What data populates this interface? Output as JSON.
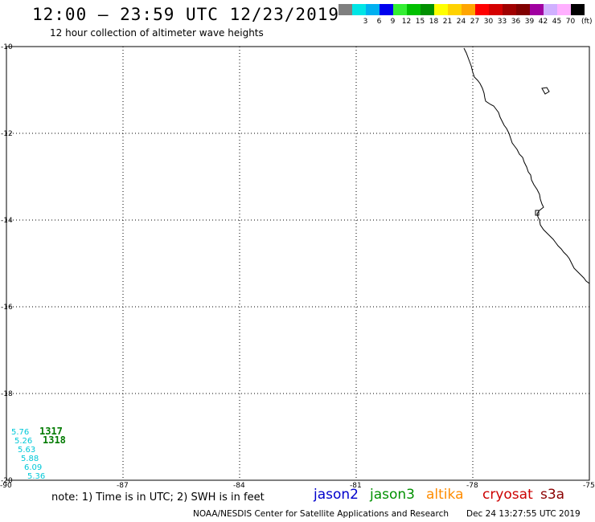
{
  "header": {
    "title": "12:00 – 23:59 UTC 12/23/2019",
    "subtitle": "12 hour collection of altimeter wave heights"
  },
  "color_scale": {
    "unit": "(ft)",
    "bins": [
      {
        "label": "",
        "color": "#7f7f7f"
      },
      {
        "label": "3",
        "color": "#00e5e5"
      },
      {
        "label": "6",
        "color": "#00b0f0"
      },
      {
        "label": "9",
        "color": "#0000ee"
      },
      {
        "label": "12",
        "color": "#33ee33"
      },
      {
        "label": "15",
        "color": "#00c000"
      },
      {
        "label": "18",
        "color": "#009000"
      },
      {
        "label": "21",
        "color": "#ffff00"
      },
      {
        "label": "24",
        "color": "#ffd200"
      },
      {
        "label": "27",
        "color": "#ffa500"
      },
      {
        "label": "30",
        "color": "#ff0000"
      },
      {
        "label": "33",
        "color": "#d40000"
      },
      {
        "label": "36",
        "color": "#a00000"
      },
      {
        "label": "39",
        "color": "#800000"
      },
      {
        "label": "42",
        "color": "#a000a0"
      },
      {
        "label": "45",
        "color": "#d0b0ff"
      },
      {
        "label": "70",
        "color": "#ffb0ff"
      },
      {
        "label": "",
        "color": "#000000"
      }
    ]
  },
  "map": {
    "lat_labels": [
      "-10",
      "-12",
      "-14",
      "-16",
      "-18",
      "-20"
    ],
    "lon_labels": [
      "-90",
      "-87",
      "-84",
      "-81",
      "-78",
      "-75"
    ]
  },
  "observations": {
    "wave_heights": [
      {
        "value": "5.76",
        "color": "#00c8d8"
      },
      {
        "value": "5.26",
        "color": "#00c8d8"
      },
      {
        "value": "5.63",
        "color": "#00c8d8"
      },
      {
        "value": "5.88",
        "color": "#00c8d8"
      },
      {
        "value": "6.09",
        "color": "#00c8d8"
      },
      {
        "value": "5.36",
        "color": "#00c8d8"
      }
    ],
    "pass_times": [
      {
        "value": "1317",
        "color": "#007a00"
      },
      {
        "value": "1318",
        "color": "#007a00"
      }
    ]
  },
  "footer": {
    "note": "note:  1) Time is in UTC;  2) SWH is in feet",
    "satellites": [
      {
        "name": "jason2",
        "color": "#0000cc"
      },
      {
        "name": "jason3",
        "color": "#009000"
      },
      {
        "name": "altika",
        "color": "#ff8c00"
      },
      {
        "name": "cryosat",
        "color": "#cc0000"
      },
      {
        "name": "s3a",
        "color": "#8b0000"
      }
    ],
    "credit": "NOAA/NESDIS Center for Satellite Applications and Research",
    "timestamp": "Dec 24 13:27:55 UTC 2019"
  }
}
